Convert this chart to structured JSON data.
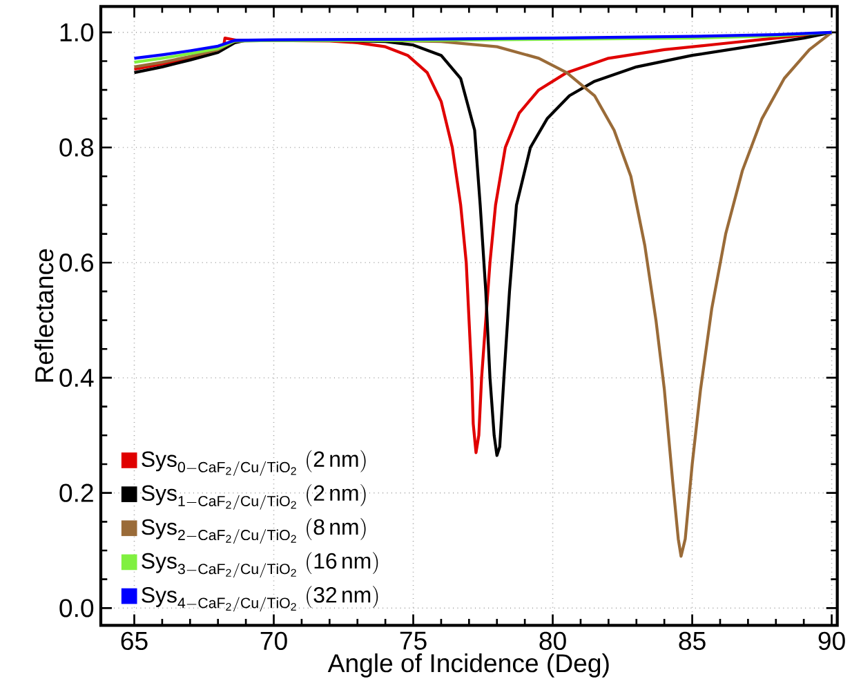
{
  "chart_data": {
    "type": "line",
    "xlabel": "Angle of Incidence (Deg)",
    "ylabel": "Reflectance",
    "xlim": [
      63.8,
      90.2
    ],
    "ylim": [
      -0.03,
      1.045
    ],
    "xticks": [
      65,
      70,
      75,
      80,
      85,
      90
    ],
    "yticks": [
      {
        "value": 0,
        "label": "0.0"
      },
      {
        "value": 0.2,
        "label": "0.2"
      },
      {
        "value": 0.4,
        "label": "0.4"
      },
      {
        "value": 0.6,
        "label": "0.6"
      },
      {
        "value": 0.8,
        "label": "0.8"
      },
      {
        "value": 1,
        "label": "1.0"
      }
    ],
    "grid": true,
    "legend": "bottom left",
    "marker": "none",
    "line_style": "solid",
    "series": [
      {
        "name": "\\mathrm{Sys}_{\\mathrm{0-CaF_2/Cu/TiO_2}}\\ \\mathrm{(2\\,nm)}",
        "color": "#e00000",
        "x": [
          65,
          66,
          67,
          67.8,
          68.2,
          68.25,
          68.7,
          70,
          72,
          73,
          74,
          74.8,
          75.5,
          76,
          76.4,
          76.7,
          76.9,
          77.0,
          77.1,
          77.15,
          77.25,
          77.35,
          77.45,
          77.6,
          77.75,
          77.95,
          78.3,
          78.8,
          79.5,
          80.5,
          82,
          84,
          86,
          88,
          90
        ],
        "values": [
          0.936,
          0.945,
          0.955,
          0.966,
          0.975,
          0.99,
          0.986,
          0.986,
          0.985,
          0.982,
          0.975,
          0.96,
          0.93,
          0.88,
          0.8,
          0.7,
          0.6,
          0.5,
          0.4,
          0.32,
          0.27,
          0.3,
          0.4,
          0.5,
          0.6,
          0.7,
          0.8,
          0.86,
          0.9,
          0.93,
          0.955,
          0.97,
          0.98,
          0.99,
          1.0
        ]
      },
      {
        "name": "\\mathrm{Sys}_{\\mathrm{1-CaF_2/Cu/TiO_2}}\\ \\mathrm{(2\\,nm)}",
        "color": "#000000",
        "x": [
          65,
          66,
          67,
          68,
          68.6,
          69,
          72,
          74,
          75,
          76,
          76.7,
          77.2,
          77.4,
          77.6,
          77.75,
          77.9,
          78.0,
          78.1,
          78.25,
          78.45,
          78.7,
          79.2,
          79.8,
          80.6,
          81.5,
          83,
          85,
          87,
          89,
          90
        ],
        "values": [
          0.93,
          0.94,
          0.952,
          0.965,
          0.982,
          0.986,
          0.986,
          0.984,
          0.978,
          0.96,
          0.92,
          0.83,
          0.7,
          0.55,
          0.4,
          0.3,
          0.265,
          0.28,
          0.4,
          0.55,
          0.7,
          0.8,
          0.85,
          0.89,
          0.915,
          0.94,
          0.96,
          0.975,
          0.99,
          1.0
        ]
      },
      {
        "name": "\\mathrm{Sys}_{\\mathrm{2-CaF_2/Cu/TiO_2}}\\ \\mathrm{(8\\,nm)}",
        "color": "#9a6b38",
        "x": [
          65,
          66,
          67,
          68,
          68.6,
          70,
          74,
          76,
          78,
          79.5,
          80.5,
          81.5,
          82.2,
          82.8,
          83.3,
          83.7,
          84.0,
          84.3,
          84.5,
          84.6,
          84.75,
          85.0,
          85.3,
          85.7,
          86.2,
          86.8,
          87.5,
          88.3,
          89.2,
          90
        ],
        "values": [
          0.94,
          0.948,
          0.958,
          0.97,
          0.985,
          0.986,
          0.986,
          0.984,
          0.975,
          0.955,
          0.93,
          0.89,
          0.83,
          0.75,
          0.63,
          0.5,
          0.38,
          0.22,
          0.12,
          0.09,
          0.12,
          0.25,
          0.38,
          0.52,
          0.65,
          0.76,
          0.85,
          0.92,
          0.97,
          1.0
        ]
      },
      {
        "name": "\\mathrm{Sys}_{\\mathrm{3-CaF_2/Cu/TiO_2}}\\ \\mathrm{(16\\,nm)}",
        "color": "#80f040",
        "x": [
          65,
          66,
          67,
          68,
          68.6,
          70,
          75,
          80,
          85,
          88,
          90
        ],
        "values": [
          0.948,
          0.955,
          0.963,
          0.972,
          0.985,
          0.986,
          0.986,
          0.988,
          0.99,
          0.994,
          1.0
        ]
      },
      {
        "name": "\\mathrm{Sys}_{\\mathrm{4-CaF_2/Cu/TiO_2}}\\ \\mathrm{(32\\,nm)}",
        "color": "#0000ff",
        "x": [
          65,
          66,
          67,
          68,
          68.6,
          70,
          75,
          80,
          85,
          88,
          90
        ],
        "values": [
          0.955,
          0.961,
          0.968,
          0.976,
          0.986,
          0.987,
          0.988,
          0.99,
          0.993,
          0.996,
          1.0
        ]
      }
    ]
  }
}
